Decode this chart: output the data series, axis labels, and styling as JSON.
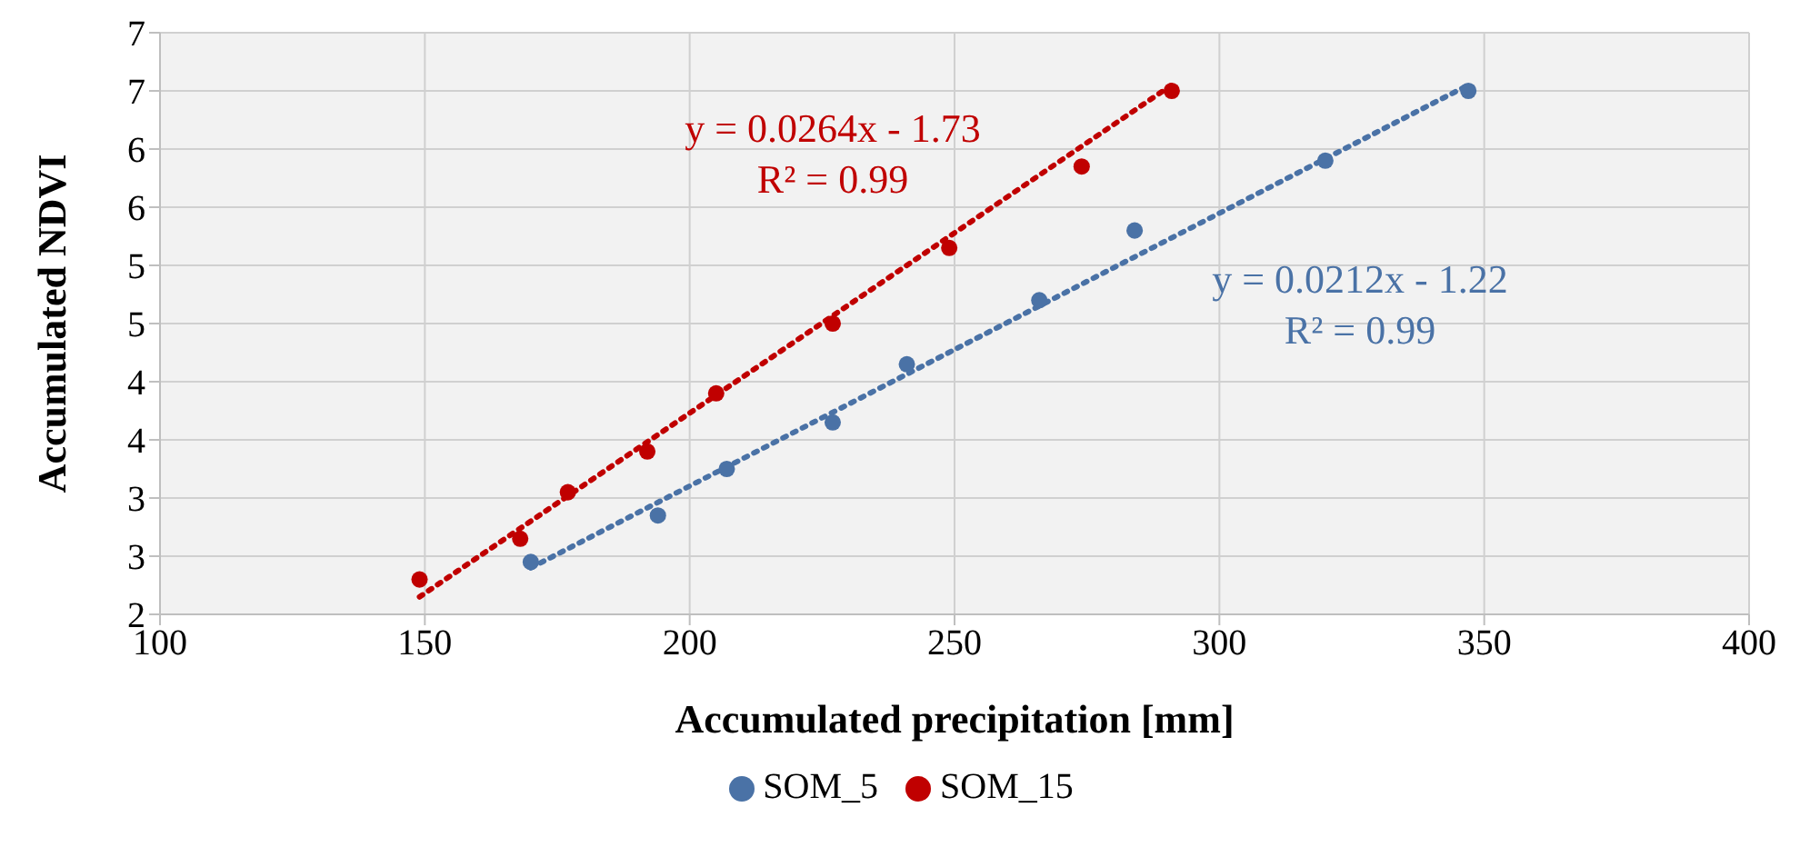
{
  "chart_data": {
    "type": "scatter",
    "xlabel": "Accumulated precipitation [mm]",
    "ylabel": "Accumulated NDVI",
    "xlim": [
      100,
      400
    ],
    "xticks": [
      100,
      150,
      200,
      250,
      300,
      350,
      400
    ],
    "ylim": [
      2,
      7
    ],
    "yticks": [
      2,
      {
        "value": 2.5,
        "label": "3"
      },
      3,
      {
        "value": 3.5,
        "label": "4"
      },
      4,
      {
        "value": 4.5,
        "label": "5"
      },
      5,
      {
        "value": 5.5,
        "label": "6"
      },
      6,
      {
        "value": 6.5,
        "label": "7"
      },
      7
    ],
    "grid": true,
    "legend": "bottom",
    "marker": "circle",
    "series": [
      {
        "name": "SOM_5",
        "color": "#4a72a6",
        "x": [
          170,
          194,
          207,
          227,
          241,
          266,
          284,
          320,
          347
        ],
        "values": [
          2.45,
          2.85,
          3.25,
          3.65,
          4.15,
          4.7,
          5.3,
          5.9,
          6.5
        ]
      },
      {
        "name": "SOM_15",
        "color": "#c00000",
        "x": [
          149,
          168,
          177,
          192,
          205,
          227,
          249,
          274,
          291
        ],
        "values": [
          2.3,
          2.65,
          3.05,
          3.4,
          3.9,
          4.5,
          5.15,
          5.85,
          6.5
        ]
      },
      {
        "type": "line",
        "color": "#4a72a6",
        "line_style": "dotted",
        "marker": "none",
        "x": [
          170,
          347
        ],
        "values": [
          2.4,
          6.55
        ]
      },
      {
        "type": "line",
        "color": "#c00000",
        "line_style": "dotted",
        "marker": "none",
        "x": [
          149,
          291
        ],
        "values": [
          2.15,
          6.55
        ]
      }
    ],
    "annotations": [
      "y = 0.0264x - 1.73",
      "R² = 0.99",
      "y = 0.0212x - 1.22",
      "R² = 0.99"
    ]
  }
}
